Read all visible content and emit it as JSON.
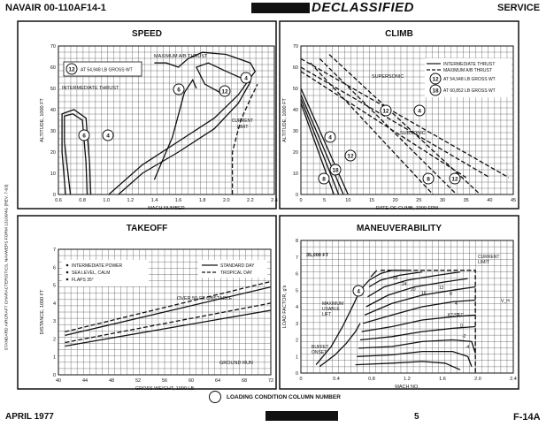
{
  "header": {
    "left": "NAVAIR 00-110AF14-1",
    "middle": "DECLASSIFIED",
    "right": "SERVICE"
  },
  "footer": {
    "left": "APRIL 1977",
    "page": "5",
    "right": "F-14A",
    "legend": "LOADING CONDITION COLUMN NUMBER"
  },
  "side_text": "STANDARD AIRCRAFT CHARACTERISTICS, NAVWEPS FORM 13100/4G (REV. 7-63)",
  "chart_data": [
    {
      "id": "speed",
      "type": "line",
      "title": "SPEED",
      "xlabel": "MACH NUMBER",
      "ylabel": "ALTITUDE, 1000 FT",
      "xlim": [
        0.6,
        2.4
      ],
      "ylim": [
        0,
        70
      ],
      "xticks": [
        "0.6",
        "0.8",
        "1.0",
        "1.2",
        "1.4",
        "1.6",
        "1.8",
        "2.0",
        "2.2",
        "2.4"
      ],
      "yticks": [
        "0",
        "10",
        "20",
        "30",
        "40",
        "50",
        "60",
        "70"
      ],
      "legend": [
        {
          "number": "12",
          "text": "AT 54,948 LB GROSS WT"
        }
      ],
      "annotations": [
        "MAXIMUM A/B THRUST",
        "INTERMEDIATE THRUST",
        "CURRENT LIMIT"
      ],
      "series": [
        {
          "label": "6",
          "style": "solid",
          "points": [
            [
              0.84,
              0
            ],
            [
              0.83,
              15
            ],
            [
              0.8,
              35
            ],
            [
              0.72,
              38
            ],
            [
              0.65,
              37
            ],
            [
              0.65,
              25
            ],
            [
              0.68,
              10
            ],
            [
              0.7,
              0
            ]
          ]
        },
        {
          "label": "4",
          "style": "solid",
          "points": [
            [
              0.87,
              0
            ],
            [
              0.86,
              15
            ],
            [
              0.83,
              36
            ],
            [
              0.73,
              40
            ],
            [
              0.63,
              38
            ],
            [
              0.63,
              20
            ],
            [
              0.66,
              0
            ]
          ]
        },
        {
          "label": "6",
          "style": "solid",
          "points": [
            [
              1.4,
              7
            ],
            [
              1.55,
              27
            ],
            [
              1.65,
              48
            ],
            [
              1.72,
              54
            ],
            [
              1.75,
              50
            ]
          ]
        },
        {
          "label": "12",
          "style": "solid",
          "points": [
            [
              1.1,
              0
            ],
            [
              1.3,
              10
            ],
            [
              1.6,
              20
            ],
            [
              1.9,
              31
            ],
            [
              2.1,
              43
            ],
            [
              2.17,
              50
            ],
            [
              2.2,
              53
            ],
            [
              2.0,
              58
            ],
            [
              1.85,
              62
            ],
            [
              1.75,
              60
            ],
            [
              1.82,
              52
            ],
            [
              1.95,
              48
            ]
          ]
        },
        {
          "label": "4",
          "style": "solid",
          "points": [
            [
              1.02,
              0
            ],
            [
              1.3,
              14
            ],
            [
              1.6,
              25
            ],
            [
              1.9,
              36
            ],
            [
              2.1,
              47
            ],
            [
              2.2,
              55
            ],
            [
              2.24,
              58
            ],
            [
              2.2,
              62
            ],
            [
              2.0,
              66
            ],
            [
              1.8,
              67
            ],
            [
              1.68,
              64
            ],
            [
              1.6,
              60
            ],
            [
              1.5,
              62
            ],
            [
              1.4,
              62
            ]
          ]
        },
        {
          "label": "CURRENT LIMIT",
          "style": "dashed",
          "points": [
            [
              2.05,
              0
            ],
            [
              2.05,
              20
            ],
            [
              2.12,
              35
            ],
            [
              2.2,
              45
            ],
            [
              2.26,
              52
            ]
          ]
        }
      ]
    },
    {
      "id": "climb",
      "type": "line",
      "title": "CLIMB",
      "xlabel": "RATE OF CLIMB, 1000 FPM",
      "ylabel": "ALTITUDE, 1000 FT",
      "xlim": [
        0,
        45
      ],
      "ylim": [
        0,
        70
      ],
      "xticks": [
        "0",
        "5",
        "10",
        "15",
        "20",
        "25",
        "30",
        "35",
        "40",
        "45"
      ],
      "yticks": [
        "0",
        "10",
        "20",
        "30",
        "40",
        "50",
        "60",
        "70"
      ],
      "legend": [
        {
          "style": "solid",
          "text": "INTERMEDIATE THRUST"
        },
        {
          "style": "dashed",
          "text": "MAXIMUM A/B THRUST"
        },
        {
          "number": "12",
          "text": "AT 54,948 LB GROSS WT"
        },
        {
          "number": "18",
          "text": "AT 60,852 LB GROSS WT"
        }
      ],
      "annotations": [
        "SUPERSONIC",
        "SUBSONIC"
      ],
      "series": [
        {
          "label": "8",
          "style": "solid",
          "points": [
            [
              0,
              43
            ],
            [
              7,
              0
            ]
          ]
        },
        {
          "label": "18",
          "style": "solid",
          "points": [
            [
              0,
              45
            ],
            [
              8,
              0
            ]
          ]
        },
        {
          "label": "12",
          "style": "solid",
          "points": [
            [
              0,
              47
            ],
            [
              9,
              0
            ]
          ]
        },
        {
          "label": "4",
          "style": "solid",
          "points": [
            [
              0,
              50
            ],
            [
              10,
              0
            ]
          ]
        },
        {
          "label": "8",
          "style": "dashed",
          "points": [
            [
              0,
              58
            ],
            [
              35,
              8
            ]
          ]
        },
        {
          "label": "12",
          "style": "dashed",
          "points": [
            [
              0,
              60
            ],
            [
              40,
              8
            ]
          ]
        },
        {
          "label": "4",
          "style": "dashed",
          "points": [
            [
              0,
              64
            ],
            [
              44,
              8
            ]
          ]
        },
        {
          "label": "8",
          "style": "dashed",
          "points": [
            [
              2,
              62
            ],
            [
              28,
              0
            ]
          ]
        },
        {
          "label": "12",
          "style": "dashed",
          "points": [
            [
              4,
              64
            ],
            [
              33,
              0
            ]
          ]
        },
        {
          "label": "4",
          "style": "dashed",
          "points": [
            [
              6,
              66
            ],
            [
              38,
              0
            ]
          ]
        }
      ]
    },
    {
      "id": "takeoff",
      "type": "line",
      "title": "TAKEOFF",
      "xlabel": "GROSS WEIGHT, 1000 LB",
      "ylabel": "DISTANCE, 1000 FT",
      "xlim": [
        40,
        72
      ],
      "ylim": [
        0,
        7
      ],
      "xticks": [
        "40",
        "44",
        "48",
        "52",
        "56",
        "60",
        "64",
        "68",
        "72"
      ],
      "yticks": [
        "0",
        "1",
        "2",
        "3",
        "4",
        "5",
        "6",
        "7"
      ],
      "legend": [
        {
          "style": "bullet",
          "text": "INTERMEDIATE POWER"
        },
        {
          "style": "bullet",
          "text": "SEA LEVEL, CALM"
        },
        {
          "style": "bullet",
          "text": "FLAPS 35°"
        },
        {
          "style": "solid",
          "text": "STANDARD DAY"
        },
        {
          "style": "dashed",
          "text": "TROPICAL DAY"
        }
      ],
      "annotations": [
        "OVER 50-FT OBSTACLE",
        "GROUND RUN"
      ],
      "series": [
        {
          "name": "OVER 50-FT OBSTACLE",
          "style": "dashed",
          "points": [
            [
              41,
              2.4
            ],
            [
              72,
              5.2
            ]
          ]
        },
        {
          "name": "OVER 50-FT OBSTACLE",
          "style": "solid",
          "points": [
            [
              41,
              2.2
            ],
            [
              72,
              4.9
            ]
          ]
        },
        {
          "name": "GROUND RUN",
          "style": "dashed",
          "points": [
            [
              41,
              1.8
            ],
            [
              72,
              4.0
            ]
          ]
        },
        {
          "name": "GROUND RUN",
          "style": "solid",
          "points": [
            [
              41,
              1.6
            ],
            [
              72,
              3.6
            ]
          ]
        }
      ]
    },
    {
      "id": "maneuverability",
      "type": "line",
      "title": "MANEUVERABILITY",
      "xlabel": "MACH NO.",
      "ylabel": "LOAD FACTOR, g's",
      "xlim": [
        0,
        2.8
      ],
      "ylim": [
        0,
        8
      ],
      "xticks": [
        "0",
        "0.4",
        "0.8",
        "1.2",
        "1.6",
        "2.0",
        "2.4"
      ],
      "yticks": [
        "0",
        "1",
        "2",
        "3",
        "4",
        "5",
        "6",
        "7",
        "8"
      ],
      "annotations": [
        "35,000 FT",
        "MAXIMUM USABLE LIFT",
        "BUFFET ONSET",
        "CURRENT LIMIT",
        "KT/SEC",
        "V_H"
      ],
      "contour_labels": [
        "28",
        "24",
        "20",
        "16",
        "12",
        "8",
        "4",
        "2",
        "0",
        "-2",
        "-4"
      ],
      "series": [
        {
          "label": "MAXIMUM USABLE LIFT",
          "style": "solid",
          "points": [
            [
              0.2,
              0.5
            ],
            [
              0.4,
              1.6
            ],
            [
              0.55,
              2.8
            ],
            [
              0.7,
              4.2
            ],
            [
              0.78,
              5.0
            ],
            [
              0.9,
              5.6
            ],
            [
              1.05,
              6.0
            ],
            [
              1.2,
              6.2
            ],
            [
              1.4,
              6.2
            ]
          ]
        },
        {
          "label": "BUFFET ONSET",
          "style": "solid",
          "points": [
            [
              0.25,
              0.4
            ],
            [
              0.45,
              1.1
            ],
            [
              0.6,
              1.8
            ],
            [
              0.72,
              2.5
            ],
            [
              0.78,
              3.0
            ]
          ]
        },
        {
          "label": "CURRENT LIMIT",
          "style": "dashed",
          "points": [
            [
              1.05,
              6.2
            ],
            [
              2.3,
              6.2
            ],
            [
              2.3,
              0
            ]
          ]
        },
        {
          "label": "28",
          "style": "solid",
          "points": [
            [
              0.92,
              5.8
            ],
            [
              1.0,
              6.2
            ]
          ]
        },
        {
          "label": "24",
          "style": "solid",
          "points": [
            [
              0.9,
              5.2
            ],
            [
              1.05,
              5.6
            ],
            [
              1.3,
              5.9
            ],
            [
              1.6,
              6.1
            ]
          ]
        },
        {
          "label": "20",
          "style": "solid",
          "points": [
            [
              0.88,
              4.6
            ],
            [
              1.1,
              5.2
            ],
            [
              1.4,
              5.6
            ],
            [
              1.8,
              5.9
            ],
            [
              2.1,
              6.1
            ]
          ]
        },
        {
          "label": "16",
          "style": "solid",
          "points": [
            [
              0.86,
              4.0
            ],
            [
              1.15,
              4.7
            ],
            [
              1.5,
              5.2
            ],
            [
              1.9,
              5.5
            ],
            [
              2.2,
              5.7
            ]
          ]
        },
        {
          "label": "12",
          "style": "solid",
          "points": [
            [
              0.84,
              3.5
            ],
            [
              1.2,
              4.2
            ],
            [
              1.6,
              4.7
            ],
            [
              2.0,
              5.0
            ],
            [
              2.3,
              5.2
            ]
          ]
        },
        {
          "label": "8",
          "style": "solid",
          "points": [
            [
              0.82,
              3.0
            ],
            [
              1.2,
              3.5
            ],
            [
              1.6,
              4.0
            ],
            [
              2.0,
              4.3
            ],
            [
              2.3,
              4.4
            ]
          ]
        },
        {
          "label": "4",
          "style": "solid",
          "points": [
            [
              0.8,
              2.5
            ],
            [
              1.2,
              2.8
            ],
            [
              1.6,
              3.2
            ],
            [
              2.0,
              3.4
            ],
            [
              2.3,
              3.5
            ]
          ]
        },
        {
          "label": "2",
          "style": "solid",
          "points": [
            [
              0.78,
              2.0
            ],
            [
              1.2,
              2.2
            ],
            [
              1.6,
              2.5
            ],
            [
              2.0,
              2.7
            ],
            [
              2.3,
              2.8
            ]
          ]
        },
        {
          "label": "0",
          "style": "solid",
          "points": [
            [
              0.76,
              1.5
            ],
            [
              1.2,
              1.6
            ],
            [
              1.6,
              1.9
            ],
            [
              2.0,
              2.0
            ],
            [
              2.25,
              1.9
            ],
            [
              2.3,
              1.2
            ]
          ]
        },
        {
          "label": "-2",
          "style": "solid",
          "points": [
            [
              0.74,
              1.0
            ],
            [
              1.2,
              1.1
            ],
            [
              1.6,
              1.3
            ],
            [
              2.0,
              1.3
            ],
            [
              2.2,
              1.0
            ],
            [
              2.25,
              0.4
            ]
          ]
        },
        {
          "label": "-4",
          "style": "solid",
          "points": [
            [
              0.72,
              0.5
            ],
            [
              1.2,
              0.6
            ],
            [
              1.6,
              0.7
            ],
            [
              1.9,
              0.6
            ],
            [
              2.1,
              0.2
            ]
          ]
        }
      ]
    }
  ]
}
